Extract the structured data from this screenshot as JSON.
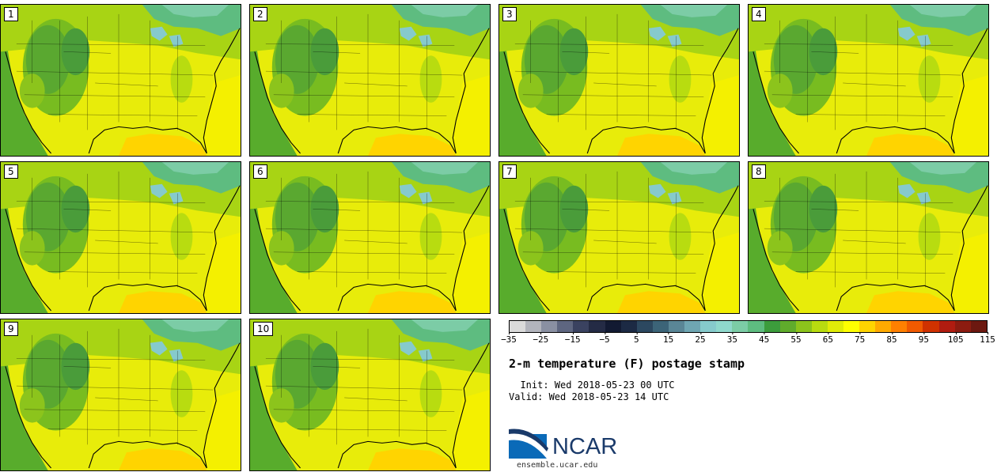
{
  "panels": [
    {
      "label": "1"
    },
    {
      "label": "2"
    },
    {
      "label": "3"
    },
    {
      "label": "4"
    },
    {
      "label": "5"
    },
    {
      "label": "6"
    },
    {
      "label": "7"
    },
    {
      "label": "8"
    },
    {
      "label": "9"
    },
    {
      "label": "10"
    }
  ],
  "colorbar": {
    "colors": [
      "#dadada",
      "#b2b4bc",
      "#8a90a2",
      "#5e6680",
      "#3a4260",
      "#242b45",
      "#121a32",
      "#1c2a44",
      "#2c4860",
      "#3c6478",
      "#5a8696",
      "#6fa6b2",
      "#86cacc",
      "#8fd8cc",
      "#7ccca6",
      "#5ebc80",
      "#3c9c3c",
      "#60ac2c",
      "#8cc41c",
      "#b8dc10",
      "#e0ec08",
      "#ffff00",
      "#ffd400",
      "#ffaa00",
      "#ff8000",
      "#f05a00",
      "#d03200",
      "#b01c10",
      "#8c1c10",
      "#6c1810"
    ],
    "tick_labels": [
      "−35",
      "−25",
      "−15",
      "−5",
      "5",
      "15",
      "25",
      "35",
      "45",
      "55",
      "65",
      "75",
      "85",
      "95",
      "105",
      "115"
    ]
  },
  "title": "2-m temperature (F) postage stamp",
  "init_line": "  Init: Wed 2018-05-23 00 UTC",
  "valid_line": "Valid: Wed 2018-05-23 14 UTC",
  "logo": {
    "word": "NCAR",
    "url": "ensemble.ucar.edu"
  }
}
